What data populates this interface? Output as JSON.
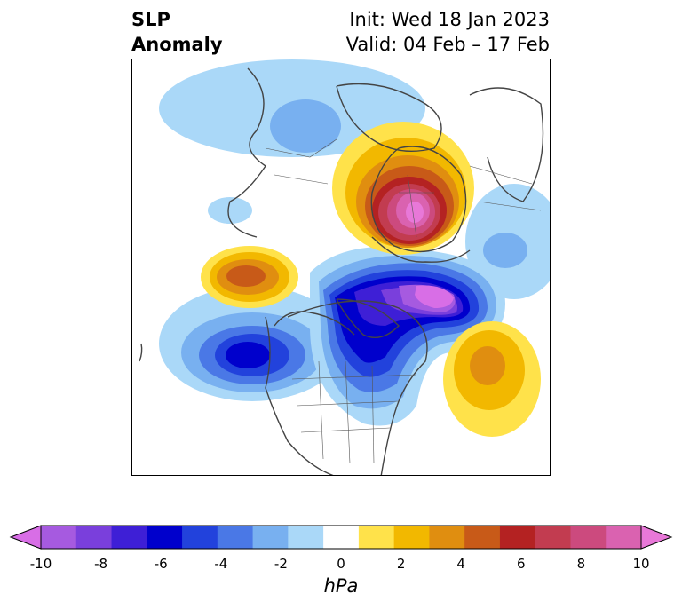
{
  "title": {
    "line1": "SLP",
    "line2": "Anomaly"
  },
  "subtitle": {
    "init": "Init: Wed 18 Jan 2023",
    "valid": "Valid: 04 Feb – 17 Feb"
  },
  "colorbar": {
    "unit": "hPa",
    "ticks": [
      "-10",
      "-8",
      "-6",
      "-4",
      "-2",
      "0",
      "2",
      "4",
      "6",
      "8",
      "10"
    ],
    "colors": [
      "#d86ee6",
      "#a65ae0",
      "#7a3fdc",
      "#3e1fd6",
      "#0000cc",
      "#2242dc",
      "#4a78e6",
      "#78b0f0",
      "#aad8f8",
      "#ffffff",
      "#ffe24a",
      "#f2b800",
      "#e08e10",
      "#c85a18",
      "#b42222",
      "#c23c50",
      "#cc4a7e",
      "#da62b0",
      "#e878d8"
    ]
  },
  "map": {
    "field": "SLP anomaly",
    "features": [
      "high pressure anomaly over Arctic/Siberia",
      "low pressure anomaly over Canada",
      "low pressure anomaly over North Pacific",
      "high pressure anomaly over North Atlantic",
      "high pressure anomaly over Alaska/Bering"
    ]
  }
}
